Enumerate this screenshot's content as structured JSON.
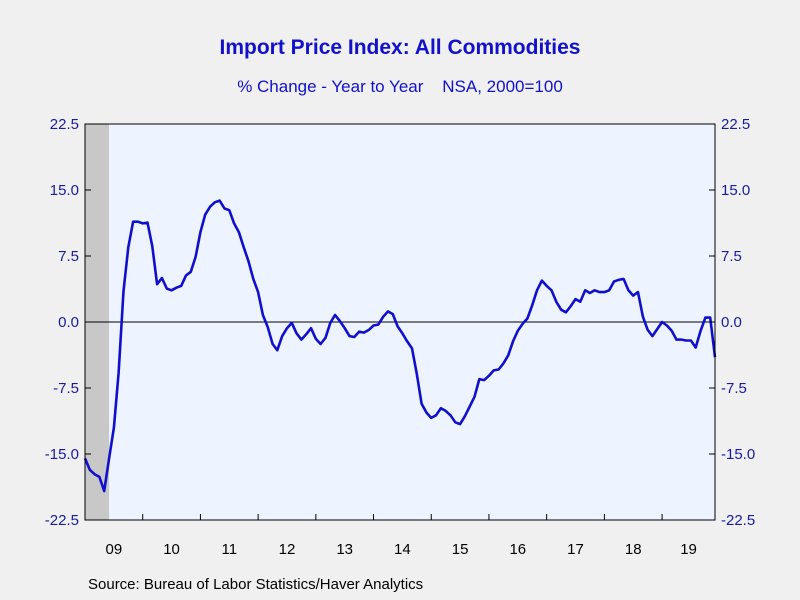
{
  "chart_data": {
    "type": "line",
    "title": "Import Price Index: All Commodities",
    "subtitle": "% Change - Year to Year    NSA, 2000=100",
    "source": "Source:  Bureau of Labor Statistics/Haver Analytics",
    "ylim": [
      -22.5,
      22.5
    ],
    "yticks": [
      "22.5",
      "15.0",
      "7.5",
      "0.0",
      "-7.5",
      "-15.0",
      "-22.5"
    ],
    "ytick_values": [
      22.5,
      15.0,
      7.5,
      0.0,
      -7.5,
      -15.0,
      -22.5
    ],
    "xlim": [
      2009.0,
      2019.917
    ],
    "xticks": [
      "09",
      "10",
      "11",
      "12",
      "13",
      "14",
      "15",
      "16",
      "17",
      "18",
      "19"
    ],
    "recession_shading": [
      2009.0,
      2009.417
    ],
    "colors": {
      "line": "#1010cc",
      "plot_bg": "#eef4ff",
      "recession": "#c8c8c8",
      "text": "#1111cc"
    },
    "series": [
      {
        "x": [
          2009.0,
          2009.083,
          2009.167,
          2009.25,
          2009.333,
          2009.417,
          2009.5,
          2009.583,
          2009.667,
          2009.75,
          2009.833,
          2009.917,
          2010.0,
          2010.083,
          2010.167,
          2010.25,
          2010.333,
          2010.417,
          2010.5,
          2010.583,
          2010.667,
          2010.75,
          2010.833,
          2010.917,
          2011.0,
          2011.083,
          2011.167,
          2011.25,
          2011.333,
          2011.417,
          2011.5,
          2011.583,
          2011.667,
          2011.75,
          2011.833,
          2011.917,
          2012.0,
          2012.083,
          2012.167,
          2012.25,
          2012.333,
          2012.417,
          2012.5,
          2012.583,
          2012.667,
          2012.75,
          2012.833,
          2012.917,
          2013.0,
          2013.083,
          2013.167,
          2013.25,
          2013.333,
          2013.417,
          2013.5,
          2013.583,
          2013.667,
          2013.75,
          2013.833,
          2013.917,
          2014.0,
          2014.083,
          2014.167,
          2014.25,
          2014.333,
          2014.417,
          2014.5,
          2014.583,
          2014.667,
          2014.75,
          2014.833,
          2014.917,
          2015.0,
          2015.083,
          2015.167,
          2015.25,
          2015.333,
          2015.417,
          2015.5,
          2015.583,
          2015.667,
          2015.75,
          2015.833,
          2015.917,
          2016.0,
          2016.083,
          2016.167,
          2016.25,
          2016.333,
          2016.417,
          2016.5,
          2016.583,
          2016.667,
          2016.75,
          2016.833,
          2016.917,
          2017.0,
          2017.083,
          2017.167,
          2017.25,
          2017.333,
          2017.417,
          2017.5,
          2017.583,
          2017.667,
          2017.75,
          2017.833,
          2017.917,
          2018.0,
          2018.083,
          2018.167,
          2018.25,
          2018.333,
          2018.417,
          2018.5,
          2018.583,
          2018.667,
          2018.75,
          2018.833,
          2018.917,
          2019.0,
          2019.083,
          2019.167,
          2019.25,
          2019.333,
          2019.417,
          2019.5,
          2019.583,
          2019.667,
          2019.75,
          2019.833,
          2019.917
        ],
        "y": [
          -15.5,
          -16.8,
          -17.3,
          -17.6,
          -19.2,
          -15.5,
          -12.0,
          -5.8,
          3.5,
          8.5,
          11.4,
          11.4,
          11.2,
          11.3,
          8.6,
          4.3,
          5.0,
          3.8,
          3.6,
          3.9,
          4.1,
          5.3,
          5.7,
          7.4,
          10.2,
          12.2,
          13.1,
          13.6,
          13.8,
          12.9,
          12.7,
          11.2,
          10.2,
          8.5,
          6.9,
          4.9,
          3.4,
          0.8,
          -0.6,
          -2.5,
          -3.2,
          -1.6,
          -0.7,
          -0.1,
          -1.3,
          -2.0,
          -1.4,
          -0.7,
          -1.9,
          -2.5,
          -1.8,
          -0.1,
          0.8,
          0.1,
          -0.7,
          -1.6,
          -1.7,
          -1.1,
          -1.2,
          -0.9,
          -0.4,
          -0.3,
          0.6,
          1.2,
          0.9,
          -0.5,
          -1.3,
          -2.2,
          -3.0,
          -5.9,
          -9.3,
          -10.3,
          -10.9,
          -10.6,
          -9.8,
          -10.1,
          -10.6,
          -11.4,
          -11.6,
          -10.7,
          -9.6,
          -8.5,
          -6.5,
          -6.6,
          -6.1,
          -5.5,
          -5.4,
          -4.7,
          -3.8,
          -2.2,
          -1.0,
          -0.2,
          0.4,
          1.9,
          3.6,
          4.7,
          4.1,
          3.6,
          2.3,
          1.4,
          1.1,
          1.8,
          2.6,
          2.3,
          3.6,
          3.3,
          3.6,
          3.4,
          3.4,
          3.6,
          4.6,
          4.8,
          4.9,
          3.6,
          3.0,
          3.4,
          0.6,
          -0.9,
          -1.6,
          -0.8,
          0.0,
          -0.4,
          -1.0,
          -2.0,
          -2.0,
          -2.1,
          -2.1,
          -2.9,
          -1.0,
          0.5,
          0.5,
          -4.0
        ]
      }
    ]
  }
}
